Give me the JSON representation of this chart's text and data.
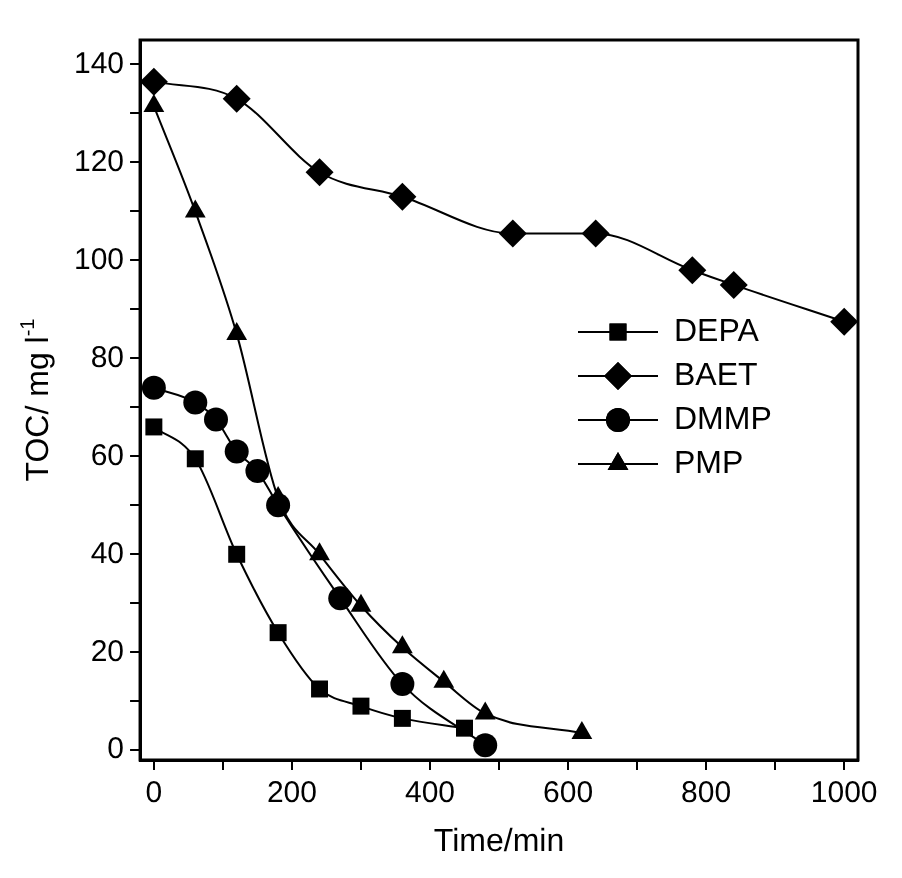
{
  "chart_data": {
    "type": "line",
    "xlabel": "Time/min",
    "ylabel": "TOC/ mg l$^{-1}$",
    "xlim": [
      -20,
      1020
    ],
    "ylim": [
      -2,
      145
    ],
    "xticks": [
      0,
      {
        "value": 100,
        "label": null
      },
      200,
      {
        "value": 300,
        "label": null
      },
      400,
      {
        "value": 500,
        "label": null
      },
      600,
      {
        "value": 700,
        "label": null
      },
      800,
      {
        "value": 900,
        "label": null
      },
      1000
    ],
    "yticks": [
      0,
      {
        "value": 10,
        "label": null
      },
      20,
      {
        "value": 30,
        "label": null
      },
      40,
      {
        "value": 50,
        "label": null
      },
      60,
      {
        "value": 70,
        "label": null
      },
      80,
      {
        "value": 90,
        "label": null
      },
      100,
      {
        "value": 110,
        "label": null
      },
      120,
      {
        "value": 130,
        "label": null
      },
      140
    ],
    "grid": false,
    "legend": "right",
    "series": [
      {
        "name": "DEPA",
        "color": "#000000",
        "marker": "square",
        "x": [
          0,
          60,
          120,
          180,
          240,
          300,
          360,
          450
        ],
        "values": [
          66,
          59.5,
          40,
          24,
          12.5,
          9,
          6.5,
          4.5
        ]
      },
      {
        "name": "BAET",
        "color": "#000000",
        "marker": "diamond",
        "x": [
          0,
          120,
          240,
          360,
          520,
          640,
          780,
          840,
          1000
        ],
        "values": [
          136.5,
          133,
          118,
          113,
          105.5,
          105.5,
          98,
          95,
          87.5
        ]
      },
      {
        "name": "DMMP",
        "color": "#000000",
        "marker": "circle",
        "x": [
          0,
          60,
          90,
          120,
          150,
          180,
          270,
          360,
          480
        ],
        "values": [
          74,
          71,
          67.5,
          61,
          57,
          50,
          31,
          13.5,
          1
        ]
      },
      {
        "name": "PMP",
        "color": "#000000",
        "marker": "triangle",
        "x": [
          0,
          60,
          120,
          180,
          240,
          300,
          360,
          420,
          480,
          620
        ],
        "values": [
          131.5,
          110,
          85,
          51.5,
          40,
          29.5,
          21,
          14,
          7.5,
          3.5
        ]
      }
    ]
  }
}
